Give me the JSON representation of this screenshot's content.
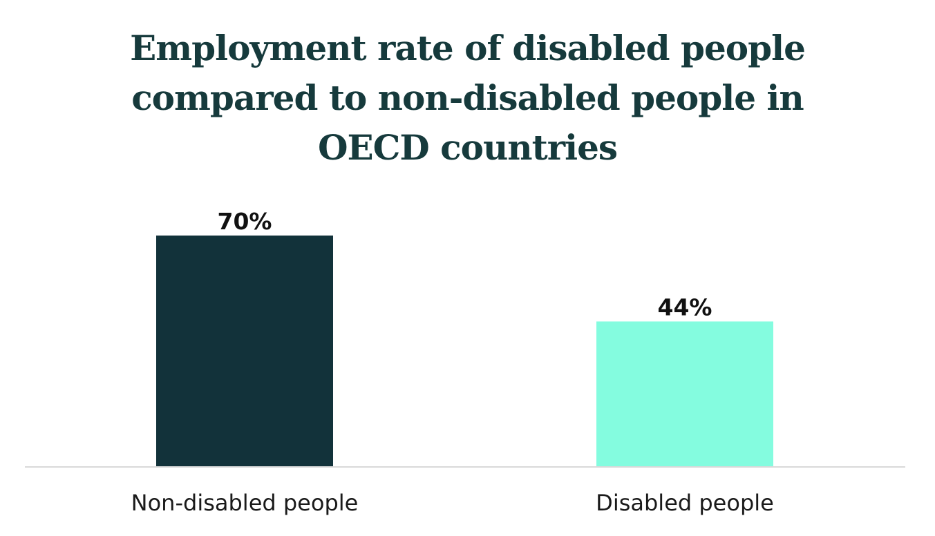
{
  "chart_data": {
    "type": "bar",
    "title_lines": [
      "Employment rate of disabled people",
      "compared to non-disabled people in",
      "OECD countries"
    ],
    "categories": [
      "Non-disabled people",
      "Disabled people"
    ],
    "values": [
      70,
      44
    ],
    "value_labels": [
      "70%",
      "44%"
    ],
    "colors": [
      "#12323a",
      "#84fcdf"
    ],
    "axis_color": "#d9d9d9",
    "ylim": [
      0,
      70
    ],
    "grid": false,
    "legend": "none"
  }
}
